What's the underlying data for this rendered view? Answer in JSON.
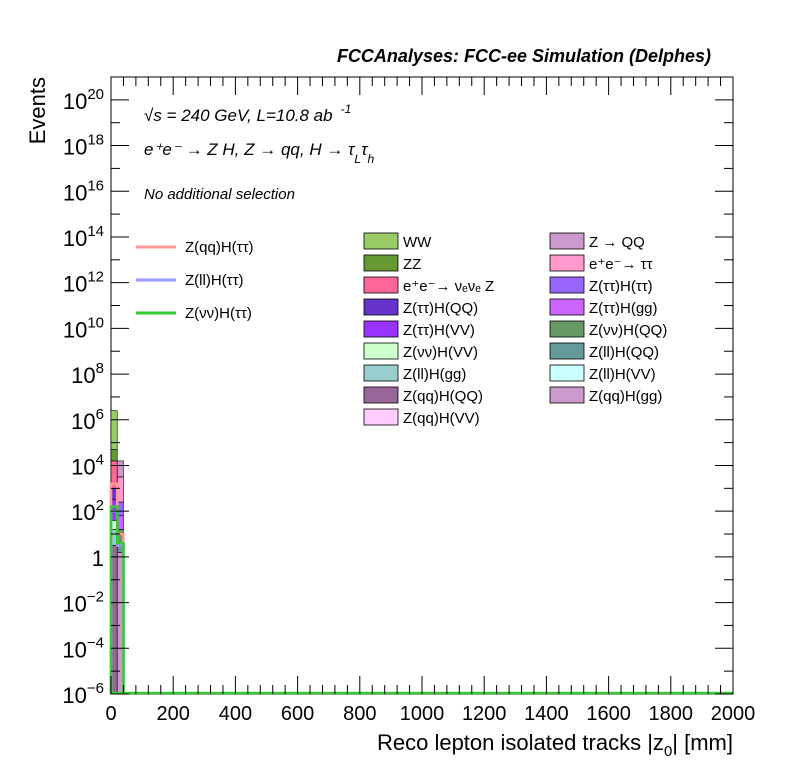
{
  "chart_data": {
    "type": "bar",
    "title": "FCCAnalyses: FCC-ee Simulation (Delphes)",
    "xlabel": "Reco lepton isolated tracks |z",
    "xlabel_sub": "0",
    "xlabel_tail": "| [mm]",
    "ylabel": "Events",
    "xlim": [
      0,
      2000
    ],
    "ylog": true,
    "ylim_exp": [
      -6,
      21
    ],
    "x_ticks": [
      "0",
      "200",
      "400",
      "600",
      "800",
      "1000",
      "1200",
      "1400",
      "1600",
      "1800",
      "2000"
    ],
    "x_tick_values": [
      0,
      200,
      400,
      600,
      800,
      1000,
      1200,
      1400,
      1600,
      1800,
      2000
    ],
    "y_tick_labels": [
      {
        "exp": 20,
        "base": "10",
        "sup": "20"
      },
      {
        "exp": 18,
        "base": "10",
        "sup": "18"
      },
      {
        "exp": 16,
        "base": "10",
        "sup": "16"
      },
      {
        "exp": 14,
        "base": "10",
        "sup": "14"
      },
      {
        "exp": 12,
        "base": "10",
        "sup": "12"
      },
      {
        "exp": 10,
        "base": "10",
        "sup": "10"
      },
      {
        "exp": 8,
        "base": "10",
        "sup": "8"
      },
      {
        "exp": 6,
        "base": "10",
        "sup": "6"
      },
      {
        "exp": 4,
        "base": "10",
        "sup": "4"
      },
      {
        "exp": 2,
        "base": "10",
        "sup": "2"
      },
      {
        "exp": 0,
        "base": "1",
        "sup": ""
      },
      {
        "exp": -2,
        "base": "10",
        "sup": "−2"
      },
      {
        "exp": -4,
        "base": "10",
        "sup": "−4"
      },
      {
        "exp": -6,
        "base": "10",
        "sup": "−6"
      }
    ],
    "annotations": {
      "energy": "√s = 240 GeV, L=10.8 ab",
      "energy_sup": "-1",
      "process": "e⁺e⁻ → Z H, Z  → qq, H  →  τ",
      "process_sub1": "L",
      "process_tau": "τ",
      "process_sub2": "h",
      "selection": "No additional selection"
    },
    "stack_bins": [
      {
        "x0": 0,
        "x1": 20,
        "segments": [
          {
            "name": "WW",
            "color": "#99cc66",
            "log_top": 6.4
          },
          {
            "name": "ZZ",
            "color": "#669933",
            "log_top": 4.7
          },
          {
            "name": "e⁺e⁻→ νₑνₑ Z",
            "color": "#ff6699",
            "log_top": 4.2
          },
          {
            "name": "Z(ττ)H(QQ)",
            "color": "#6633cc",
            "log_top": 3.0
          },
          {
            "name": "Z(ττ)H(VV)",
            "color": "#9933ff",
            "log_top": 2.5
          },
          {
            "name": "Z(νν)H(VV)",
            "color": "#ccffcc",
            "log_top": 1.6
          },
          {
            "name": "Z(ll)H(gg)",
            "color": "#99cccc",
            "log_top": 1.2
          },
          {
            "name": "Z(qq)H(QQ)",
            "color": "#996699",
            "log_top": 0.5
          }
        ]
      },
      {
        "x0": 20,
        "x1": 40,
        "segments": [
          {
            "name": "Z → QQ",
            "color": "#cc99cc",
            "log_top": 4.2
          },
          {
            "name": "e⁺e⁻→ ττ",
            "color": "#ff99cc",
            "log_top": 3.5
          },
          {
            "name": "Z(ττ)H(ττ)",
            "color": "#9966ff",
            "log_top": 2.4
          },
          {
            "name": "Z(ττ)H(gg)",
            "color": "#cc66ff",
            "log_top": 1.8
          },
          {
            "name": "Z(νν)H(QQ)",
            "color": "#669966",
            "log_top": 1.2
          },
          {
            "name": "Z(ll)H(QQ)",
            "color": "#669999",
            "log_top": 0.6
          },
          {
            "name": "Z(qq)H(gg)",
            "color": "#cc99cc",
            "log_top": 0.2
          }
        ]
      }
    ],
    "signal_lines": [
      {
        "name": "Z(qq)H(ττ)",
        "color": "#ff9999",
        "bins": [
          [
            0,
            20,
            3.2
          ],
          [
            20,
            40,
            1.0
          ]
        ]
      },
      {
        "name": "Z(ll)H(ττ)",
        "color": "#9999ff",
        "bins": [
          [
            0,
            20,
            2.0
          ],
          [
            20,
            40,
            0.5
          ]
        ]
      },
      {
        "name": "Z(νν)H(ττ)",
        "color": "#33cc33",
        "bins": [
          [
            0,
            20,
            2.2
          ],
          [
            20,
            40,
            0.6
          ]
        ]
      }
    ],
    "legend_signals": [
      {
        "label": "Z(qq)H(ττ)",
        "color": "#ff9999"
      },
      {
        "label": "Z(ll)H(ττ)",
        "color": "#9999ff"
      },
      {
        "label": "Z(νν)H(ττ)",
        "color": "#33cc33"
      }
    ],
    "legend_col1": [
      {
        "label": "WW",
        "color": "#99cc66"
      },
      {
        "label": "ZZ",
        "color": "#669933"
      },
      {
        "label": "e⁺e⁻→ νₑνₑ Z",
        "color": "#ff6699"
      },
      {
        "label": "Z(ττ)H(QQ)",
        "color": "#6633cc"
      },
      {
        "label": "Z(ττ)H(VV)",
        "color": "#9933ff"
      },
      {
        "label": "Z(νν)H(VV)",
        "color": "#ccffcc"
      },
      {
        "label": "Z(ll)H(gg)",
        "color": "#99cccc"
      },
      {
        "label": "Z(qq)H(QQ)",
        "color": "#996699"
      },
      {
        "label": "Z(qq)H(VV)",
        "color": "#ffccff"
      }
    ],
    "legend_col2": [
      {
        "label": "Z → QQ",
        "color": "#cc99cc"
      },
      {
        "label": "e⁺e⁻→ ττ",
        "color": "#ff99cc"
      },
      {
        "label": "Z(ττ)H(ττ)",
        "color": "#9966ff"
      },
      {
        "label": "Z(ττ)H(gg)",
        "color": "#cc66ff"
      },
      {
        "label": "Z(νν)H(QQ)",
        "color": "#669966"
      },
      {
        "label": "Z(ll)H(QQ)",
        "color": "#669999"
      },
      {
        "label": "Z(ll)H(VV)",
        "color": "#ccffff"
      },
      {
        "label": "Z(qq)H(gg)",
        "color": "#cc99cc"
      }
    ],
    "grid": false,
    "legend_placement": "upper-center"
  }
}
